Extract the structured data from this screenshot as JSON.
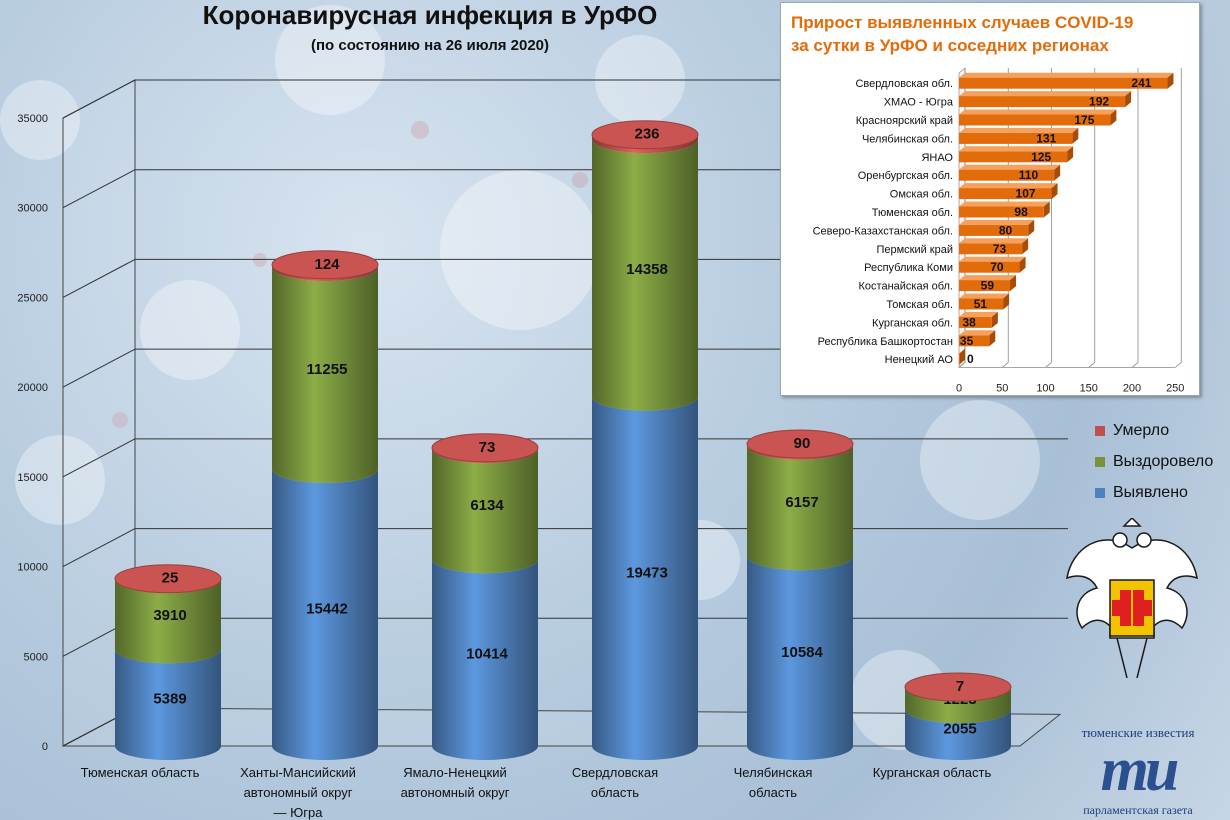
{
  "header": {
    "title": "Коронавирусная инфекция в УрФО",
    "subtitle": "(по состоянию на 26 июля 2020)"
  },
  "legend": {
    "items": [
      {
        "label": "Умерло",
        "color": "#c0504d"
      },
      {
        "label": "Выздоровело",
        "color": "#77933c"
      },
      {
        "label": "Выявлено",
        "color": "#4f81bd"
      }
    ]
  },
  "inset": {
    "title_line1": "Прирост выявленных случаев COVID-19",
    "title_line2": "за сутки в УрФО и соседних регионах"
  },
  "logo": {
    "top_text": "тюменские известия",
    "mark": "ти",
    "bottom_text": "парламентская газета"
  },
  "chart_data": [
    {
      "type": "bar",
      "stacked": true,
      "categories": [
        [
          "Тюменская область"
        ],
        [
          "Ханты-Мансийский",
          "автономный округ",
          "— Югра"
        ],
        [
          "Ямало-Ненецкий",
          "автономный округ"
        ],
        [
          "Свердловская",
          "область"
        ],
        [
          "Челябинская",
          "область"
        ],
        [
          "Курганская область"
        ]
      ],
      "series": [
        {
          "name": "Выявлено",
          "color": "#4f81bd",
          "values": [
            5389,
            15442,
            10414,
            19473,
            10584,
            2055
          ]
        },
        {
          "name": "Выздоровело",
          "color": "#77933c",
          "values": [
            3910,
            11255,
            6134,
            14358,
            6157,
            1223
          ]
        },
        {
          "name": "Умерло",
          "color": "#c0504d",
          "values": [
            25,
            124,
            73,
            236,
            90,
            7
          ]
        }
      ],
      "ylim": [
        0,
        35000
      ],
      "yticks": [
        0,
        5000,
        10000,
        15000,
        20000,
        25000,
        30000,
        35000
      ],
      "grid": true,
      "legend_position": "right"
    },
    {
      "type": "bar",
      "orientation": "horizontal",
      "categories": [
        "Свердловская обл.",
        "ХМАО - Югра",
        "Красноярский край",
        "Челябинская обл.",
        "ЯНАО",
        "Оренбургская обл.",
        "Омская обл.",
        "Тюменская обл.",
        "Северо-Казахстанская обл.",
        "Пермский край",
        "Республика Коми",
        "Костанайская обл.",
        "Томская обл.",
        "Курганская обл.",
        "Республика Башкортостан",
        "Ненецкий АО"
      ],
      "values": [
        241,
        192,
        175,
        131,
        125,
        110,
        107,
        98,
        80,
        73,
        70,
        59,
        51,
        38,
        35,
        0
      ],
      "color": "#e36c0a",
      "xlim": [
        0,
        250
      ],
      "xticks": [
        0,
        50,
        100,
        150,
        200,
        250
      ],
      "grid": true
    }
  ]
}
